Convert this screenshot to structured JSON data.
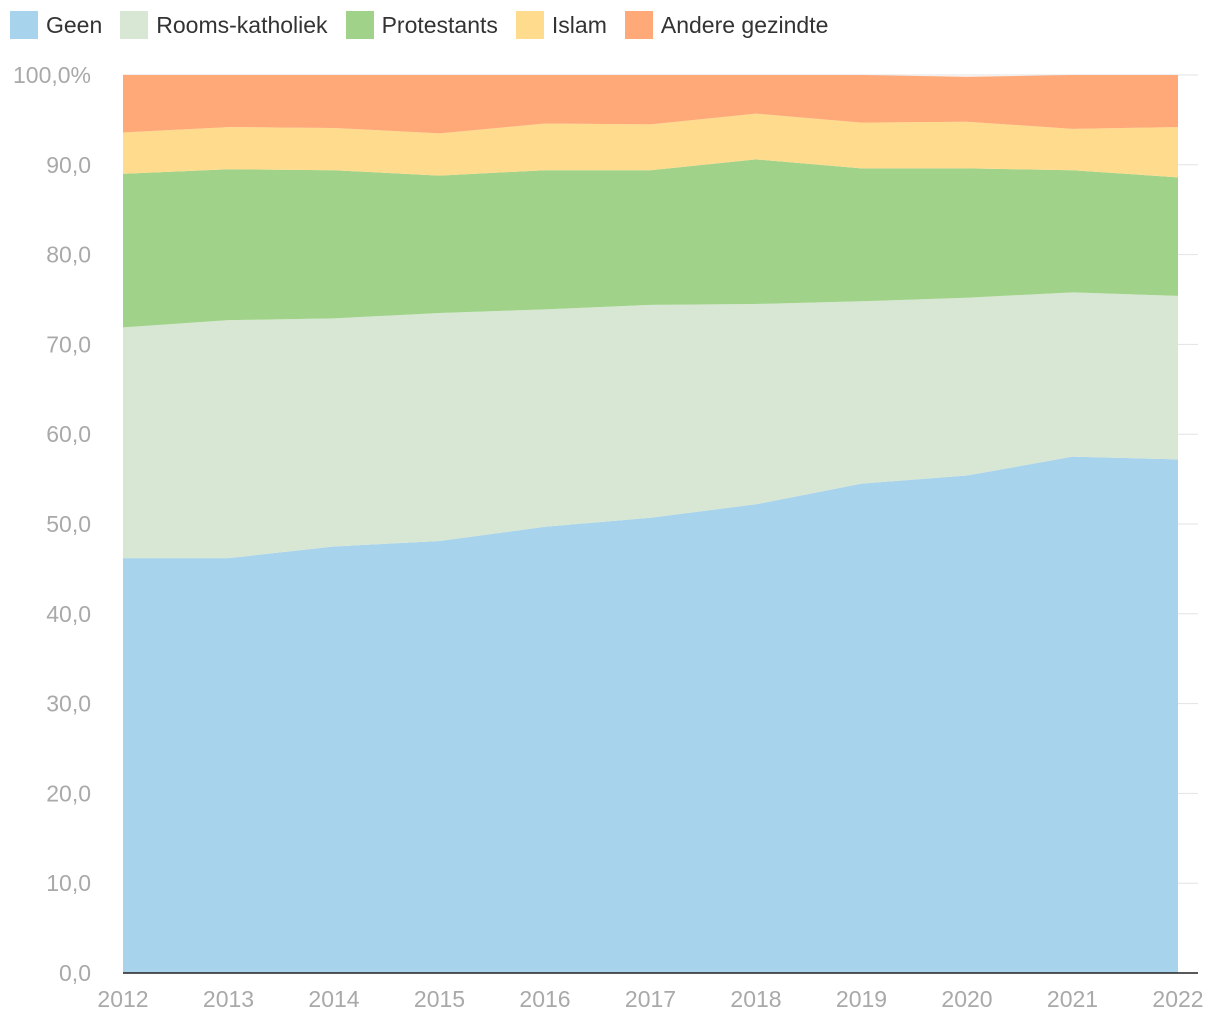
{
  "chart_data": {
    "type": "area",
    "stacked": true,
    "title": "",
    "xlabel": "",
    "ylabel": "",
    "ylim": [
      0,
      100
    ],
    "y_ticks": [
      "0,0",
      "10,0",
      "20,0",
      "30,0",
      "40,0",
      "50,0",
      "60,0",
      "70,0",
      "80,0",
      "90,0",
      "100,0%"
    ],
    "categories": [
      "2012",
      "2013",
      "2014",
      "2015",
      "2016",
      "2017",
      "2018",
      "2019",
      "2020",
      "2021",
      "2022"
    ],
    "legend_position": "top-left",
    "series": [
      {
        "name": "Geen",
        "color": "#a8d3ec",
        "values": [
          46.2,
          46.2,
          47.5,
          48.1,
          49.7,
          50.7,
          52.2,
          54.5,
          55.4,
          57.5,
          57.2
        ]
      },
      {
        "name": "Rooms-katholiek",
        "color": "#d8e7d3",
        "values": [
          25.7,
          26.5,
          25.4,
          25.4,
          24.2,
          23.7,
          22.3,
          20.3,
          19.8,
          18.3,
          18.2
        ]
      },
      {
        "name": "Protestants",
        "color": "#a0d389",
        "values": [
          17.1,
          16.8,
          16.5,
          15.3,
          15.5,
          15.0,
          16.1,
          14.8,
          14.4,
          13.6,
          13.2
        ]
      },
      {
        "name": "Islam",
        "color": "#ffdb8e",
        "values": [
          4.6,
          4.7,
          4.7,
          4.7,
          5.2,
          5.1,
          5.1,
          5.1,
          5.2,
          4.6,
          5.6
        ]
      },
      {
        "name": "Andere gezindte",
        "color": "#ffa878",
        "values": [
          6.4,
          5.8,
          5.9,
          6.5,
          5.4,
          5.5,
          4.3,
          5.3,
          5.0,
          6.0,
          5.8
        ]
      }
    ]
  }
}
